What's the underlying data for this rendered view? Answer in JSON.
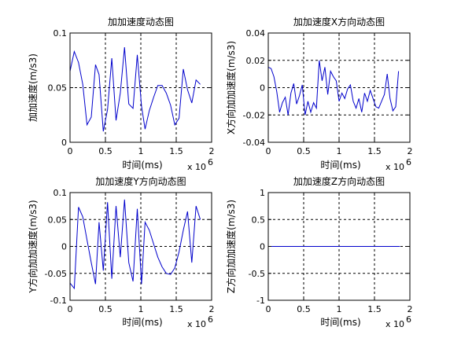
{
  "chart_data": [
    {
      "type": "line",
      "title": "加加速度动态图",
      "xlabel": "时间(ms)",
      "ylabel": "加加速度(m/s3)",
      "x_multiplier": "x 10",
      "x_exponent": "6",
      "xlim": [
        0,
        2
      ],
      "ylim": [
        0,
        0.1
      ],
      "xticks": [
        0,
        0.5,
        1,
        1.5,
        2
      ],
      "xtick_labels": [
        "0",
        "0.5",
        "1",
        "1.5",
        "2"
      ],
      "yticks": [
        0,
        0.05,
        0.1
      ],
      "ytick_labels": [
        "0",
        "0.05",
        "0.1"
      ],
      "grid": true,
      "color": "#0000cc",
      "series": [
        {
          "x": [
            0,
            0.06,
            0.12,
            0.18,
            0.24,
            0.3,
            0.36,
            0.41,
            0.47,
            0.53,
            0.59,
            0.65,
            0.71,
            0.77,
            0.83,
            0.89,
            0.95,
            1.01,
            1.06,
            1.12,
            1.18,
            1.24,
            1.3,
            1.36,
            1.42,
            1.48,
            1.54,
            1.6,
            1.66,
            1.72,
            1.78,
            1.84
          ],
          "y": [
            0.065,
            0.083,
            0.073,
            0.053,
            0.016,
            0.023,
            0.071,
            0.062,
            0.01,
            0.03,
            0.077,
            0.02,
            0.045,
            0.087,
            0.035,
            0.031,
            0.08,
            0.033,
            0.012,
            0.029,
            0.041,
            0.052,
            0.052,
            0.045,
            0.034,
            0.016,
            0.022,
            0.067,
            0.048,
            0.036,
            0.057,
            0.053
          ]
        }
      ]
    },
    {
      "type": "line",
      "title": "加加速度X方向动态图",
      "xlabel": "时间(ms)",
      "ylabel": "X方向加加速度(m/s3)",
      "x_multiplier": "x 10",
      "x_exponent": "6",
      "xlim": [
        0,
        2
      ],
      "ylim": [
        -0.04,
        0.04
      ],
      "xticks": [
        0,
        0.5,
        1,
        1.5,
        2
      ],
      "xtick_labels": [
        "0",
        "0.5",
        "1",
        "1.5",
        "2"
      ],
      "yticks": [
        -0.04,
        -0.02,
        0,
        0.02,
        0.04
      ],
      "ytick_labels": [
        "-0.04",
        "-0.02",
        "0",
        "0.02",
        "0.04"
      ],
      "grid": true,
      "color": "#0000cc",
      "series": [
        {
          "x": [
            0,
            0.04,
            0.08,
            0.12,
            0.16,
            0.2,
            0.24,
            0.28,
            0.32,
            0.36,
            0.4,
            0.44,
            0.48,
            0.52,
            0.56,
            0.6,
            0.64,
            0.68,
            0.72,
            0.76,
            0.8,
            0.84,
            0.88,
            0.92,
            0.96,
            1.0,
            1.04,
            1.08,
            1.12,
            1.16,
            1.2,
            1.24,
            1.28,
            1.32,
            1.36,
            1.4,
            1.44,
            1.48,
            1.52,
            1.56,
            1.6,
            1.64,
            1.68,
            1.72,
            1.76,
            1.8,
            1.84
          ],
          "y": [
            0.015,
            0.014,
            0.008,
            -0.003,
            -0.018,
            -0.011,
            -0.007,
            -0.02,
            -0.004,
            0.003,
            -0.012,
            -0.006,
            0.002,
            -0.02,
            -0.01,
            -0.018,
            -0.011,
            -0.015,
            0.02,
            0.005,
            0.015,
            -0.005,
            0.012,
            0.008,
            0.005,
            -0.01,
            -0.004,
            -0.008,
            -0.001,
            0.002,
            -0.01,
            -0.015,
            -0.008,
            -0.018,
            -0.004,
            -0.01,
            -0.002,
            -0.008,
            -0.014,
            -0.015,
            -0.01,
            -0.005,
            0.01,
            -0.008,
            -0.017,
            -0.014,
            0.012
          ]
        }
      ]
    },
    {
      "type": "line",
      "title": "加加速度Y方向动态图",
      "xlabel": "时间(ms)",
      "ylabel": "Y方向加加速度(m/s3)",
      "x_multiplier": "x 10",
      "x_exponent": "6",
      "xlim": [
        0,
        2
      ],
      "ylim": [
        -0.1,
        0.1
      ],
      "xticks": [
        0,
        0.5,
        1,
        1.5,
        2
      ],
      "xtick_labels": [
        "0",
        "0.5",
        "1",
        "1.5",
        "2"
      ],
      "yticks": [
        -0.1,
        -0.05,
        0,
        0.05,
        0.1
      ],
      "ytick_labels": [
        "-0.1",
        "-0.05",
        "0",
        "0.05",
        "0.1"
      ],
      "grid": true,
      "color": "#0000cc",
      "series": [
        {
          "x": [
            0,
            0.06,
            0.12,
            0.18,
            0.24,
            0.3,
            0.36,
            0.41,
            0.47,
            0.53,
            0.59,
            0.65,
            0.71,
            0.77,
            0.83,
            0.89,
            0.95,
            1.01,
            1.06,
            1.12,
            1.18,
            1.24,
            1.3,
            1.36,
            1.42,
            1.48,
            1.54,
            1.6,
            1.66,
            1.72,
            1.78,
            1.84
          ],
          "y": [
            -0.068,
            -0.078,
            0.073,
            0.055,
            0.012,
            -0.03,
            -0.07,
            0.045,
            -0.045,
            0.082,
            -0.06,
            0.075,
            -0.02,
            0.087,
            -0.03,
            -0.065,
            0.07,
            -0.07,
            0.045,
            0.03,
            0.005,
            -0.02,
            -0.038,
            -0.05,
            -0.052,
            -0.04,
            -0.01,
            0.03,
            0.065,
            -0.03,
            0.075,
            0.05
          ]
        }
      ]
    },
    {
      "type": "line",
      "title": "加加速度Z方向动态图",
      "xlabel": "时间(ms)",
      "ylabel": "Z方向加加速度(m/s3)",
      "x_multiplier": "x 10",
      "x_exponent": "6",
      "xlim": [
        0,
        2
      ],
      "ylim": [
        -1,
        1
      ],
      "xticks": [
        0,
        0.5,
        1,
        1.5,
        2
      ],
      "xtick_labels": [
        "0",
        "0.5",
        "1",
        "1.5",
        "2"
      ],
      "yticks": [
        -1,
        -0.5,
        0,
        0.5,
        1
      ],
      "ytick_labels": [
        "-1",
        "-0.5",
        "0",
        "0.5",
        "1"
      ],
      "grid": true,
      "color": "#0000cc",
      "series": [
        {
          "x": [
            0,
            1.86
          ],
          "y": [
            0,
            0
          ]
        }
      ]
    }
  ]
}
